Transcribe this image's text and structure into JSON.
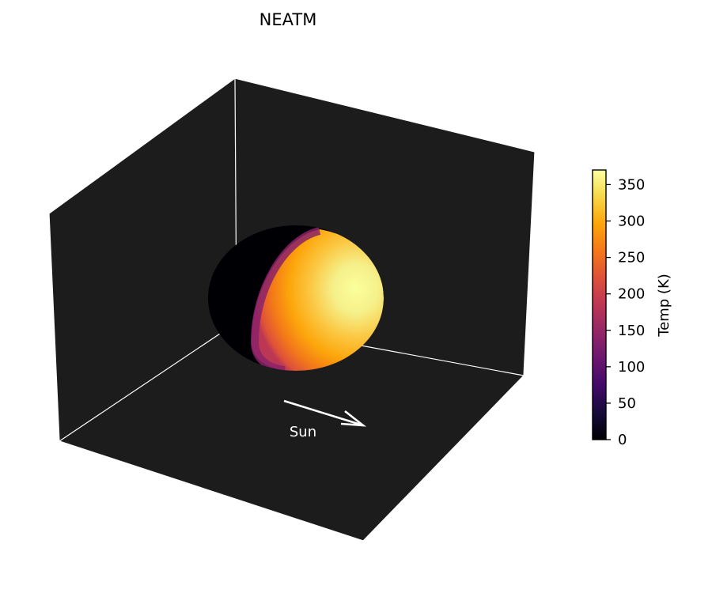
{
  "chart_data": {
    "type": "3d-surface",
    "title": "NEATM",
    "subject": "sphere temperature map",
    "illumination": {
      "direction_label": "Sun",
      "night_side_temperature": 0,
      "subsolar_temperature": 370
    },
    "colormap": "inferno",
    "colorbar": {
      "label": "Temp (K)",
      "range": [
        0,
        370
      ],
      "ticks": [
        0,
        50,
        100,
        150,
        200,
        250,
        300,
        350
      ],
      "tick_labels": [
        "0",
        "50",
        "100",
        "150",
        "200",
        "250",
        "300",
        "350"
      ]
    },
    "colors": {
      "pane": "#1c1c1c",
      "edge": "#ffffff",
      "arrow": "#ffffff",
      "night_side": "#000004"
    },
    "grid": false
  }
}
